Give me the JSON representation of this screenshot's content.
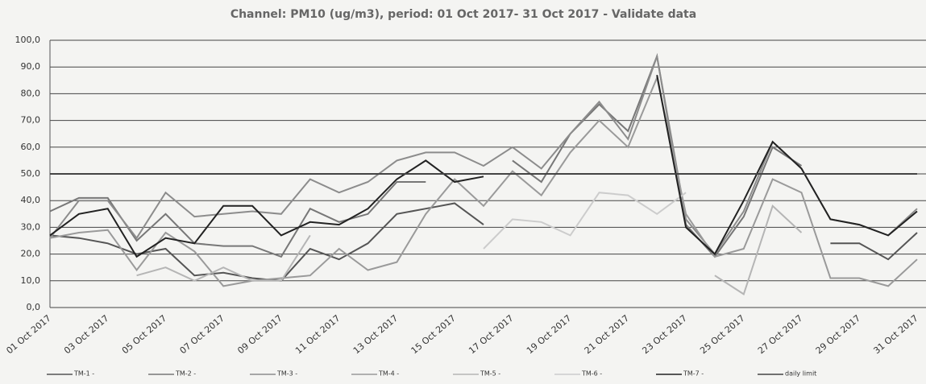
{
  "chart_data": {
    "type": "line",
    "title": "Channel: PM10 (ug/m3), period: 01 Oct 2017- 31 Oct 2017 - Validate data",
    "categories": [
      "01 Oct 2017",
      null,
      "03 Oct 2017",
      null,
      "05 Oct 2017",
      null,
      "07 Oct 2017",
      null,
      "09 Oct 2017",
      null,
      "11 Oct 2017",
      null,
      "13 Oct 2017",
      null,
      "15 Oct 2017",
      null,
      "17 Oct 2017",
      null,
      "19 Oct 2017",
      null,
      "21 Oct 2017",
      null,
      "23 Oct 2017",
      null,
      "25 Oct 2017",
      null,
      "27 Oct 2017",
      null,
      "29 Oct 2017",
      null,
      "31 Oct 2017"
    ],
    "series": [
      {
        "name": "TM-1 -",
        "color": "#555555",
        "values": [
          27,
          26,
          24,
          20,
          22,
          12,
          13,
          11,
          10,
          22,
          18,
          24,
          35,
          37,
          39,
          31,
          null,
          null,
          null,
          null,
          null,
          null,
          null,
          null,
          null,
          null,
          null,
          24,
          24,
          18,
          28
        ]
      },
      {
        "name": "TM-2 -",
        "color": "#777777",
        "values": [
          36,
          41,
          41,
          25,
          35,
          24,
          23,
          23,
          19,
          37,
          32,
          35,
          47,
          47,
          null,
          null,
          55,
          47,
          65,
          76,
          66,
          94,
          31,
          19,
          34,
          60,
          53,
          null,
          null,
          null,
          null
        ]
      },
      {
        "name": "TM-3 -",
        "color": "#8c8c8c",
        "values": [
          26,
          40,
          40,
          26,
          43,
          34,
          35,
          36,
          35,
          48,
          43,
          47,
          55,
          58,
          58,
          53,
          60,
          52,
          65,
          77,
          63,
          94,
          33,
          20,
          36,
          62,
          52,
          33,
          31,
          27,
          37
        ]
      },
      {
        "name": "TM-4 -",
        "color": "#9a9a9a",
        "values": [
          26,
          28,
          29,
          14,
          28,
          21,
          8,
          10,
          11,
          12,
          22,
          14,
          17,
          35,
          48,
          38,
          51,
          42,
          58,
          70,
          60,
          86,
          35,
          19,
          22,
          48,
          43,
          11,
          11,
          8,
          18
        ]
      },
      {
        "name": "TM-5 -",
        "color": "#b5b5b5",
        "values": [
          null,
          null,
          null,
          12,
          15,
          10,
          15,
          10,
          10,
          27,
          null,
          null,
          null,
          null,
          null,
          null,
          null,
          null,
          null,
          null,
          null,
          null,
          null,
          12,
          5,
          38,
          28,
          null,
          null,
          null,
          null
        ]
      },
      {
        "name": "TM-6 -",
        "color": "#cccccc",
        "values": [
          null,
          null,
          null,
          null,
          null,
          null,
          null,
          null,
          null,
          null,
          null,
          null,
          null,
          null,
          null,
          22,
          33,
          32,
          27,
          43,
          42,
          35,
          43,
          null,
          null,
          null,
          null,
          null,
          null,
          null,
          null
        ]
      },
      {
        "name": "TM-7 -",
        "color": "#222222",
        "values": [
          27,
          35,
          37,
          19,
          26,
          24,
          38,
          38,
          27,
          32,
          31,
          37,
          48,
          55,
          47,
          49,
          null,
          null,
          null,
          null,
          null,
          87,
          30,
          20,
          40,
          62,
          52,
          33,
          31,
          27,
          36
        ]
      },
      {
        "name": "daily limit",
        "color": "#444444",
        "values": [
          50,
          50,
          50,
          50,
          50,
          50,
          50,
          50,
          50,
          50,
          50,
          50,
          50,
          50,
          50,
          50,
          50,
          50,
          50,
          50,
          50,
          50,
          50,
          50,
          50,
          50,
          50,
          50,
          50,
          50,
          50
        ]
      }
    ],
    "ylim": [
      0,
      100
    ],
    "yticks": [
      {
        "value": 0,
        "label": "0,0"
      },
      {
        "value": 10,
        "label": "10,0"
      },
      {
        "value": 20,
        "label": "20,0"
      },
      {
        "value": 30,
        "label": "30,0"
      },
      {
        "value": 40,
        "label": "40,0"
      },
      {
        "value": 50,
        "label": "50,0"
      },
      {
        "value": 60,
        "label": "60,0"
      },
      {
        "value": 70,
        "label": "70,0"
      },
      {
        "value": 80,
        "label": "80,0"
      },
      {
        "value": 90,
        "label": "90,0"
      },
      {
        "value": 100,
        "label": "100,0"
      }
    ],
    "grid": true,
    "legend": "bottom"
  }
}
